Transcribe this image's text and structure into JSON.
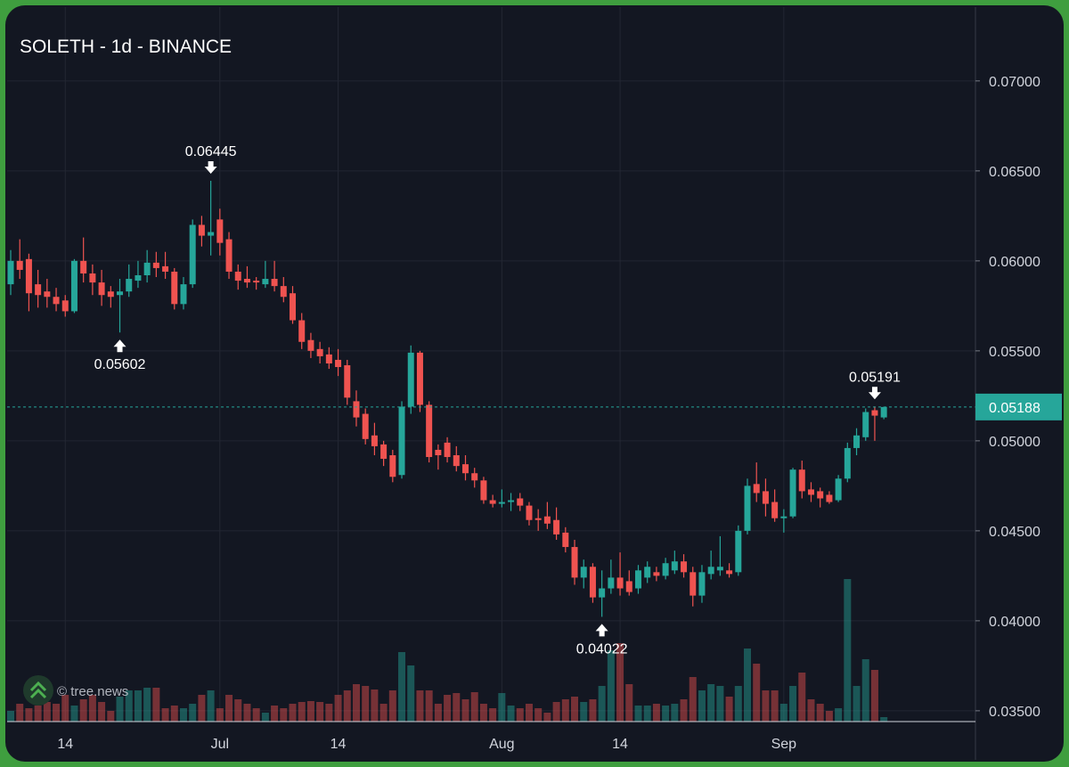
{
  "chart_data": {
    "type": "candlestick",
    "title": "SOLETH - 1d - BINANCE",
    "watermark": "© tree.news",
    "up_color": "#26a69a",
    "down_color": "#ef5350",
    "grid": true,
    "categories": [
      null,
      null,
      null,
      null,
      null,
      null,
      "14",
      null,
      null,
      null,
      null,
      null,
      null,
      null,
      null,
      null,
      null,
      null,
      null,
      null,
      null,
      null,
      null,
      "Jul",
      null,
      null,
      null,
      null,
      null,
      null,
      null,
      null,
      null,
      null,
      null,
      null,
      "14",
      null,
      null,
      null,
      null,
      null,
      null,
      null,
      null,
      null,
      null,
      null,
      null,
      null,
      null,
      null,
      null,
      null,
      "Aug",
      null,
      null,
      null,
      null,
      null,
      null,
      null,
      null,
      null,
      null,
      null,
      null,
      "14",
      null,
      null,
      null,
      null,
      null,
      null,
      null,
      null,
      null,
      null,
      null,
      null,
      null,
      null,
      null,
      null,
      null,
      "Sep",
      null,
      null,
      null,
      null,
      null,
      null,
      null,
      null,
      null,
      null,
      null
    ],
    "open": [
      0.0587,
      0.06,
      0.0601,
      0.0587,
      0.0583,
      0.058,
      0.0578,
      0.0572,
      0.06,
      0.0593,
      0.0588,
      0.0583,
      0.0581,
      0.0583,
      0.0589,
      0.0592,
      0.0599,
      0.0597,
      0.0594,
      0.0576,
      0.0587,
      0.062,
      0.0614,
      0.0623,
      0.0612,
      0.0594,
      0.059,
      0.0589,
      0.0587,
      0.059,
      0.0586,
      0.0582,
      0.0567,
      0.0556,
      0.0551,
      0.0548,
      0.0545,
      0.0542,
      0.0522,
      0.0515,
      0.0503,
      0.0498,
      0.0492,
      0.0481,
      0.0519,
      0.0549,
      0.052,
      0.0495,
      0.0499,
      0.0492,
      0.0487,
      0.0482,
      0.0478,
      0.0467,
      0.0465,
      0.0466,
      0.0468,
      0.0464,
      0.0457,
      0.0458,
      0.0456,
      0.0449,
      0.0441,
      0.0424,
      0.043,
      0.0413,
      0.0418,
      0.0424,
      0.0422,
      0.0418,
      0.0424,
      0.0427,
      0.0425,
      0.0428,
      0.0433,
      0.0427,
      0.0414,
      0.0426,
      0.0428,
      0.0428,
      0.0427,
      0.045,
      0.0476,
      0.0472,
      0.0466,
      0.0457,
      0.0458,
      0.0484,
      0.0473,
      0.0472,
      0.047,
      0.0467,
      0.0479,
      0.0496,
      0.0502,
      0.0517,
      0.0513
    ],
    "high": [
      0.0606,
      0.0612,
      0.0604,
      0.0595,
      0.059,
      0.0585,
      0.0581,
      0.0601,
      0.0613,
      0.0598,
      0.0595,
      0.0586,
      0.059,
      0.0598,
      0.06,
      0.0606,
      0.0605,
      0.0605,
      0.0596,
      0.0591,
      0.0623,
      0.0625,
      0.06445,
      0.0629,
      0.0616,
      0.0598,
      0.0597,
      0.0591,
      0.06,
      0.06,
      0.0591,
      0.0586,
      0.0571,
      0.056,
      0.0555,
      0.0552,
      0.0551,
      0.0545,
      0.0528,
      0.0518,
      0.051,
      0.05,
      0.0495,
      0.0522,
      0.0553,
      0.055,
      0.0522,
      0.0498,
      0.0502,
      0.0497,
      0.0492,
      0.0485,
      0.048,
      0.047,
      0.0473,
      0.0471,
      0.0471,
      0.0466,
      0.0462,
      0.0466,
      0.0463,
      0.0452,
      0.0445,
      0.0434,
      0.0432,
      0.0428,
      0.0434,
      0.0438,
      0.0428,
      0.0431,
      0.0433,
      0.043,
      0.0435,
      0.0439,
      0.0437,
      0.043,
      0.0431,
      0.0439,
      0.0447,
      0.0432,
      0.0453,
      0.0479,
      0.0488,
      0.0479,
      0.0473,
      0.0462,
      0.0485,
      0.0489,
      0.0477,
      0.0474,
      0.0472,
      0.0481,
      0.0499,
      0.0507,
      0.0518,
      0.05191,
      0.0519
    ],
    "low": [
      0.0581,
      0.059,
      0.0572,
      0.0574,
      0.0574,
      0.0572,
      0.0569,
      0.0571,
      0.0588,
      0.0581,
      0.0575,
      0.0574,
      0.05602,
      0.058,
      0.0585,
      0.0588,
      0.0591,
      0.059,
      0.0573,
      0.0573,
      0.0585,
      0.0608,
      0.0603,
      0.0603,
      0.059,
      0.0584,
      0.0585,
      0.0584,
      0.0585,
      0.0583,
      0.0577,
      0.0565,
      0.0551,
      0.0546,
      0.0543,
      0.054,
      0.0536,
      0.052,
      0.0508,
      0.0498,
      0.0492,
      0.0486,
      0.0477,
      0.0479,
      0.0515,
      0.0516,
      0.0488,
      0.0484,
      0.0488,
      0.0483,
      0.0478,
      0.0474,
      0.0465,
      0.0463,
      0.0463,
      0.0461,
      0.0461,
      0.0453,
      0.045,
      0.0451,
      0.0445,
      0.0438,
      0.042,
      0.0418,
      0.041,
      0.04022,
      0.0415,
      0.0414,
      0.0414,
      0.0415,
      0.0421,
      0.0422,
      0.0423,
      0.0426,
      0.0424,
      0.0408,
      0.041,
      0.0423,
      0.0425,
      0.0424,
      0.0425,
      0.0448,
      0.0466,
      0.0458,
      0.0455,
      0.0449,
      0.0457,
      0.0468,
      0.0466,
      0.0463,
      0.0465,
      0.0466,
      0.0477,
      0.0492,
      0.05,
      0.05,
      0.0512
    ],
    "close": [
      0.06,
      0.0595,
      0.0582,
      0.0581,
      0.058,
      0.0576,
      0.0572,
      0.06,
      0.0593,
      0.0588,
      0.0581,
      0.058,
      0.0583,
      0.059,
      0.0592,
      0.0599,
      0.0596,
      0.0594,
      0.0576,
      0.0587,
      0.062,
      0.0614,
      0.0616,
      0.061,
      0.0594,
      0.0589,
      0.0588,
      0.0588,
      0.059,
      0.0586,
      0.058,
      0.0567,
      0.0555,
      0.055,
      0.0547,
      0.0543,
      0.0541,
      0.0524,
      0.0513,
      0.0501,
      0.0497,
      0.049,
      0.048,
      0.0519,
      0.0549,
      0.052,
      0.0491,
      0.0492,
      0.0491,
      0.0486,
      0.0482,
      0.0478,
      0.0467,
      0.0465,
      0.0466,
      0.0467,
      0.0464,
      0.0456,
      0.0456,
      0.0454,
      0.0448,
      0.0441,
      0.0424,
      0.043,
      0.0413,
      0.0418,
      0.0424,
      0.0418,
      0.0416,
      0.0428,
      0.043,
      0.0425,
      0.0432,
      0.0433,
      0.0427,
      0.0414,
      0.0427,
      0.043,
      0.043,
      0.0426,
      0.045,
      0.0475,
      0.0471,
      0.0465,
      0.0457,
      0.0458,
      0.0484,
      0.0472,
      0.047,
      0.0468,
      0.0466,
      0.0479,
      0.0496,
      0.0503,
      0.0516,
      0.0514,
      0.05188
    ],
    "volume": [
      12,
      20,
      15,
      18,
      22,
      20,
      30,
      18,
      25,
      30,
      22,
      12,
      28,
      35,
      35,
      38,
      38,
      15,
      18,
      15,
      20,
      30,
      35,
      15,
      30,
      25,
      20,
      15,
      10,
      18,
      15,
      20,
      22,
      23,
      22,
      20,
      30,
      35,
      42,
      40,
      36,
      20,
      35,
      78,
      63,
      35,
      35,
      20,
      30,
      32,
      25,
      33,
      20,
      15,
      32,
      18,
      15,
      20,
      15,
      10,
      22,
      25,
      28,
      22,
      25,
      40,
      80,
      88,
      42,
      18,
      18,
      20,
      18,
      20,
      25,
      50,
      35,
      42,
      40,
      28,
      40,
      82,
      65,
      35,
      35,
      20,
      40,
      55,
      25,
      20,
      12,
      15,
      160,
      40,
      70,
      58,
      5
    ],
    "ylim": [
      0.0344,
      0.0741
    ],
    "yticks": [
      {
        "value": 0.035,
        "label": "0.03500"
      },
      {
        "value": 0.04,
        "label": "0.04000"
      },
      {
        "value": 0.045,
        "label": "0.04500"
      },
      {
        "value": 0.05,
        "label": "0.05000"
      },
      {
        "value": 0.055,
        "label": "0.05500"
      },
      {
        "value": 0.06,
        "label": "0.06000"
      },
      {
        "value": 0.065,
        "label": "0.06500"
      },
      {
        "value": 0.07,
        "label": "0.07000"
      }
    ]
  }
}
